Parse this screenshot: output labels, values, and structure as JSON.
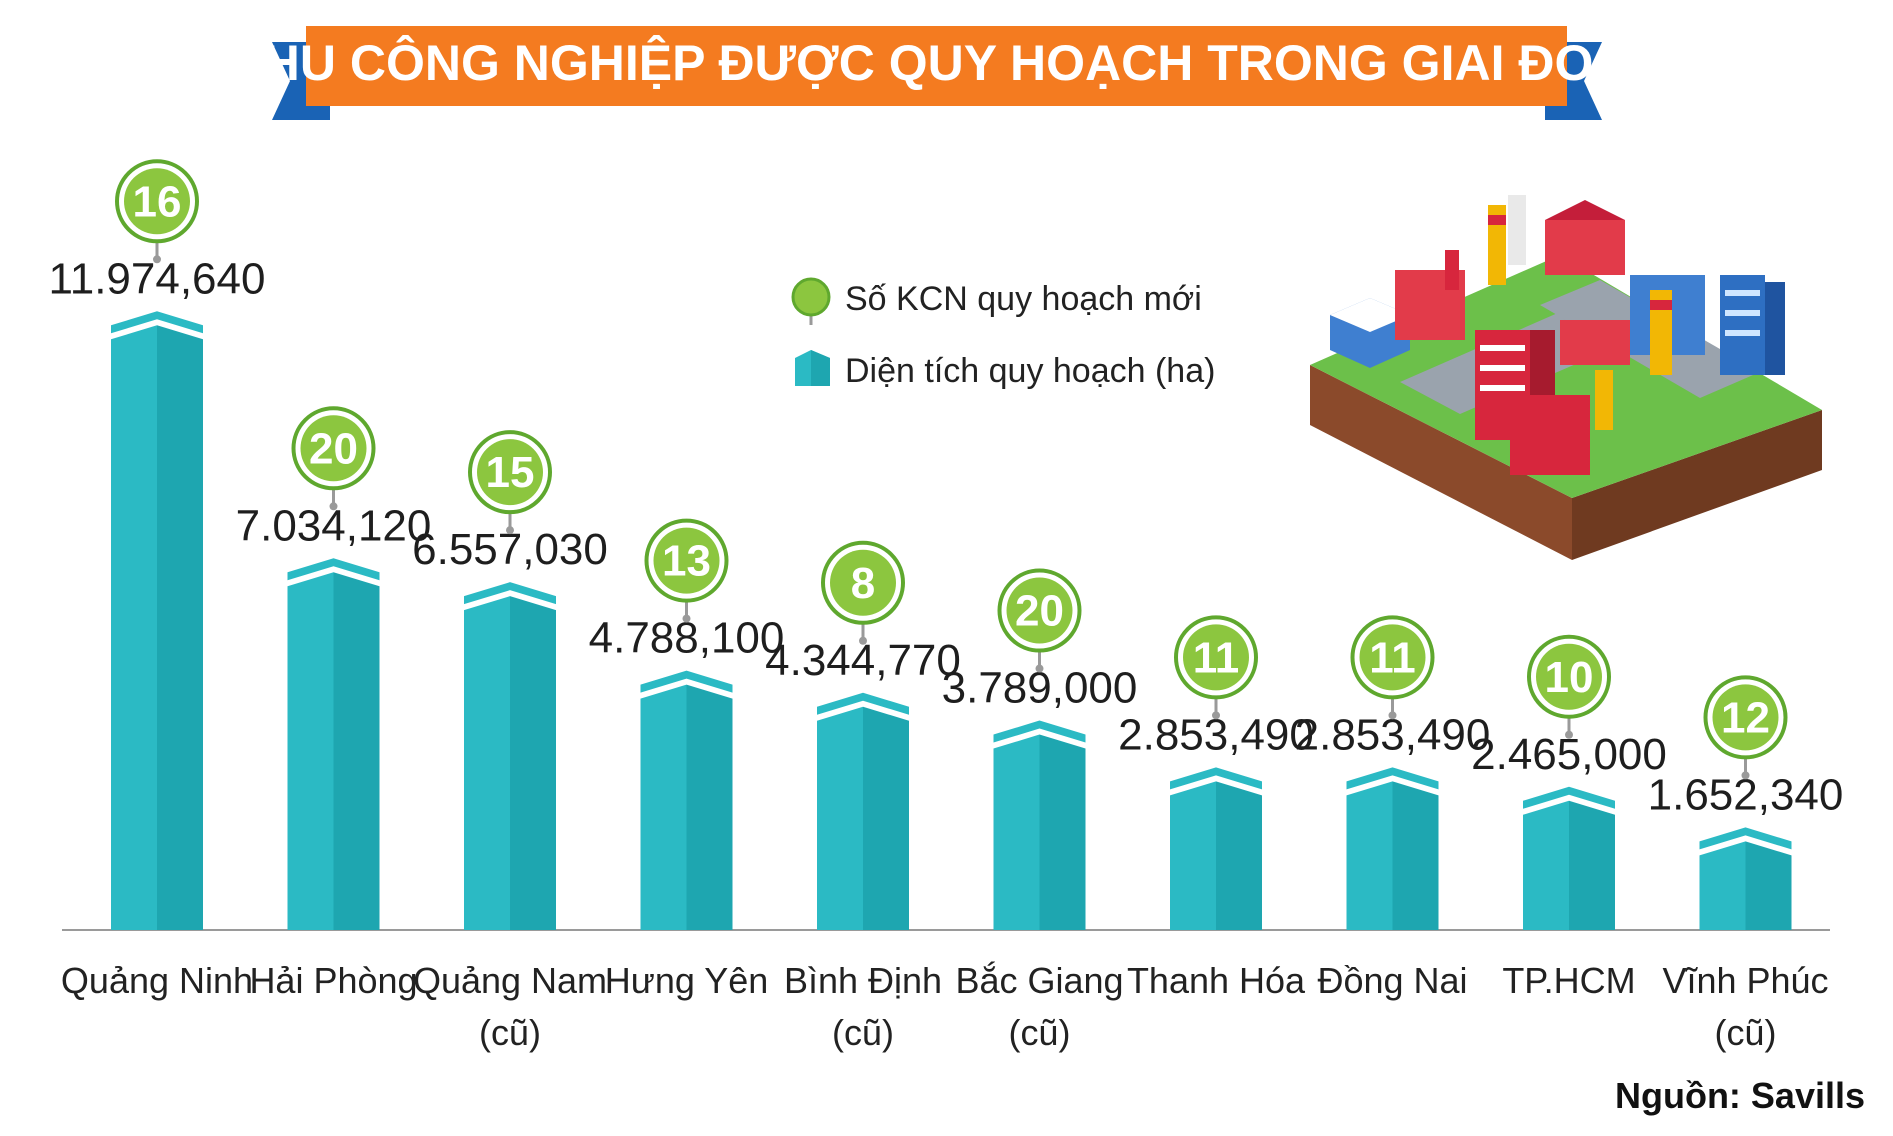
{
  "title": "CÁC KHU CÔNG NGHIỆP ĐƯỢC QUY HOẠCH TRONG GIAI ĐOẠN TỚI",
  "legend": {
    "count_label": "Số KCN quy hoạch mới",
    "area_label": "Diện tích quy hoạch (ha)"
  },
  "source": "Nguồn: Savills",
  "colors": {
    "banner_orange": "#f47b20",
    "banner_blue": "#1a63b5",
    "bar_teal": "#2bbac4",
    "bar_teal_dark": "#1ea6b0",
    "badge_green": "#8cc63f",
    "badge_green_dark": "#5fa82e"
  },
  "illustration_icon": "industrial-park-isometric-illustration",
  "chart_data": {
    "type": "bar",
    "categories": [
      [
        "Quảng Ninh"
      ],
      [
        "Hải Phòng"
      ],
      [
        "Quảng Nam",
        "(cũ)"
      ],
      [
        "Hưng Yên"
      ],
      [
        "Bình Định",
        "(cũ)"
      ],
      [
        "Bắc Giang",
        "(cũ)"
      ],
      [
        "Thanh Hóa"
      ],
      [
        "Đồng Nai"
      ],
      [
        "TP.HCM"
      ],
      [
        "Vĩnh Phúc",
        "(cũ)"
      ]
    ],
    "value_labels": [
      "11.974,640",
      "7.034,120",
      "6.557,030",
      "4.788,100",
      "4.344,770",
      "3.789,000",
      "2.853,490",
      "2.853,490",
      "2.465,000",
      "1.652,340"
    ],
    "values": [
      11974.64,
      7034.12,
      6557.03,
      4788.1,
      4344.77,
      3789.0,
      2853.49,
      2853.49,
      2465.0,
      1652.34
    ],
    "counts": [
      "16",
      "20",
      "15",
      "13",
      "8",
      "20",
      "11",
      "11",
      "10",
      "12"
    ],
    "ylim": [
      0,
      12000
    ]
  }
}
